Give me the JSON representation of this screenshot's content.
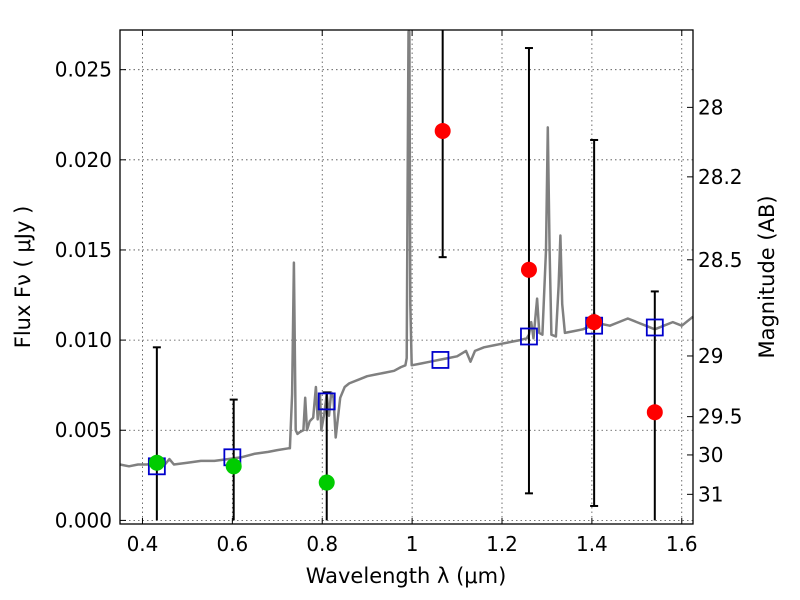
{
  "chart_data": {
    "type": "scatter",
    "title": "",
    "xlabel": "Wavelength  λ (μm)",
    "ylabel": "Flux  Fν  ( μJy )",
    "y2label": "Magnitude (AB)",
    "xlim": [
      0.35,
      1.625
    ],
    "ylim": [
      -0.0002,
      0.0272
    ],
    "grid": true,
    "x_ticks": [
      {
        "value": 0.4,
        "label": "0.4"
      },
      {
        "value": 0.6,
        "label": "0.6"
      },
      {
        "value": 0.8,
        "label": "0.8"
      },
      {
        "value": 1.0,
        "label": "1"
      },
      {
        "value": 1.2,
        "label": "1.2"
      },
      {
        "value": 1.4,
        "label": "1.4"
      },
      {
        "value": 1.6,
        "label": "1.6"
      }
    ],
    "y_ticks": [
      {
        "value": 0.0,
        "label": "0.000"
      },
      {
        "value": 0.005,
        "label": "0.005"
      },
      {
        "value": 0.01,
        "label": "0.010"
      },
      {
        "value": 0.015,
        "label": "0.015"
      },
      {
        "value": 0.02,
        "label": "0.020"
      },
      {
        "value": 0.025,
        "label": "0.025"
      }
    ],
    "y2_ticks": [
      {
        "value": 28,
        "label": "28"
      },
      {
        "value": 28.2,
        "label": "28.2"
      },
      {
        "value": 28.5,
        "label": "28.5"
      },
      {
        "value": 29,
        "label": "29"
      },
      {
        "value": 29.5,
        "label": "29.5"
      },
      {
        "value": 30,
        "label": "30"
      },
      {
        "value": 31,
        "label": "31"
      }
    ],
    "series": [
      {
        "kind": "spectrum",
        "color": "#808080",
        "points": [
          [
            0.35,
            0.0031
          ],
          [
            0.37,
            0.003
          ],
          [
            0.39,
            0.0031
          ],
          [
            0.41,
            0.0031
          ],
          [
            0.43,
            0.0032
          ],
          [
            0.45,
            0.0031
          ],
          [
            0.46,
            0.0034
          ],
          [
            0.47,
            0.0031
          ],
          [
            0.5,
            0.0032
          ],
          [
            0.53,
            0.0033
          ],
          [
            0.56,
            0.0033
          ],
          [
            0.59,
            0.0034
          ],
          [
            0.62,
            0.0035
          ],
          [
            0.65,
            0.0037
          ],
          [
            0.68,
            0.0038
          ],
          [
            0.7,
            0.0039
          ],
          [
            0.725,
            0.004
          ],
          [
            0.728,
            0.004
          ],
          [
            0.733,
            0.007
          ],
          [
            0.737,
            0.0143
          ],
          [
            0.741,
            0.005
          ],
          [
            0.745,
            0.0048
          ],
          [
            0.75,
            0.0049
          ],
          [
            0.758,
            0.005
          ],
          [
            0.762,
            0.0068
          ],
          [
            0.766,
            0.005
          ],
          [
            0.772,
            0.0055
          ],
          [
            0.78,
            0.0057
          ],
          [
            0.786,
            0.0074
          ],
          [
            0.79,
            0.0056
          ],
          [
            0.795,
            0.007
          ],
          [
            0.798,
            0.005
          ],
          [
            0.805,
            0.006
          ],
          [
            0.81,
            0.007
          ],
          [
            0.815,
            0.0058
          ],
          [
            0.82,
            0.0071
          ],
          [
            0.825,
            0.0068
          ],
          [
            0.83,
            0.0046
          ],
          [
            0.84,
            0.0068
          ],
          [
            0.85,
            0.0074
          ],
          [
            0.86,
            0.0076
          ],
          [
            0.88,
            0.0078
          ],
          [
            0.9,
            0.008
          ],
          [
            0.92,
            0.0081
          ],
          [
            0.94,
            0.0082
          ],
          [
            0.96,
            0.0083
          ],
          [
            0.975,
            0.0085
          ],
          [
            0.985,
            0.0086
          ],
          [
            0.988,
            0.009
          ],
          [
            0.99,
            0.0185
          ],
          [
            0.992,
            0.0271
          ],
          [
            0.994,
            0.0271
          ],
          [
            0.996,
            0.012
          ],
          [
            0.999,
            0.0086
          ],
          [
            1.02,
            0.0087
          ],
          [
            1.04,
            0.0088
          ],
          [
            1.06,
            0.0089
          ],
          [
            1.08,
            0.009
          ],
          [
            1.1,
            0.0091
          ],
          [
            1.12,
            0.0094
          ],
          [
            1.13,
            0.0088
          ],
          [
            1.14,
            0.0094
          ],
          [
            1.16,
            0.0096
          ],
          [
            1.18,
            0.0097
          ],
          [
            1.2,
            0.0098
          ],
          [
            1.22,
            0.0099
          ],
          [
            1.24,
            0.01
          ],
          [
            1.255,
            0.0101
          ],
          [
            1.26,
            0.0103
          ],
          [
            1.265,
            0.011
          ],
          [
            1.27,
            0.0101
          ],
          [
            1.278,
            0.0123
          ],
          [
            1.283,
            0.0104
          ],
          [
            1.29,
            0.0103
          ],
          [
            1.298,
            0.015
          ],
          [
            1.302,
            0.0218
          ],
          [
            1.306,
            0.015
          ],
          [
            1.31,
            0.0103
          ],
          [
            1.32,
            0.0102
          ],
          [
            1.326,
            0.013
          ],
          [
            1.33,
            0.0158
          ],
          [
            1.334,
            0.012
          ],
          [
            1.34,
            0.0104
          ],
          [
            1.36,
            0.0105
          ],
          [
            1.38,
            0.0106
          ],
          [
            1.4,
            0.0108
          ],
          [
            1.405,
            0.0115
          ],
          [
            1.41,
            0.0108
          ],
          [
            1.42,
            0.0109
          ],
          [
            1.44,
            0.0108
          ],
          [
            1.46,
            0.011
          ],
          [
            1.48,
            0.0112
          ],
          [
            1.5,
            0.011
          ],
          [
            1.52,
            0.0108
          ],
          [
            1.54,
            0.0106
          ],
          [
            1.56,
            0.0108
          ],
          [
            1.58,
            0.011
          ],
          [
            1.6,
            0.0108
          ],
          [
            1.625,
            0.0113
          ]
        ]
      },
      {
        "kind": "open-square",
        "color": "#0000cc",
        "x": [
          0.432,
          0.6,
          0.81,
          1.063,
          1.26,
          1.405,
          1.54
        ],
        "y": [
          0.003,
          0.0035,
          0.0066,
          0.0089,
          0.0102,
          0.0108,
          0.0107
        ]
      },
      {
        "kind": "filled-circle",
        "color": "#00cc00",
        "x": [
          0.432,
          0.603,
          0.81
        ],
        "y": [
          0.0032,
          0.003,
          0.0021
        ],
        "err_low": [
          0.0,
          0.0,
          0.0
        ],
        "err_high": [
          0.0096,
          0.0067,
          0.0071
        ]
      },
      {
        "kind": "filled-circle",
        "color": "#ff0000",
        "x": [
          1.068,
          1.26,
          1.405,
          1.54
        ],
        "y": [
          0.0216,
          0.0139,
          0.011,
          0.006
        ],
        "err_low": [
          0.0146,
          0.0015,
          0.0008,
          0.0
        ],
        "err_high": [
          0.0272,
          0.0262,
          0.0211,
          0.0127
        ]
      }
    ]
  }
}
